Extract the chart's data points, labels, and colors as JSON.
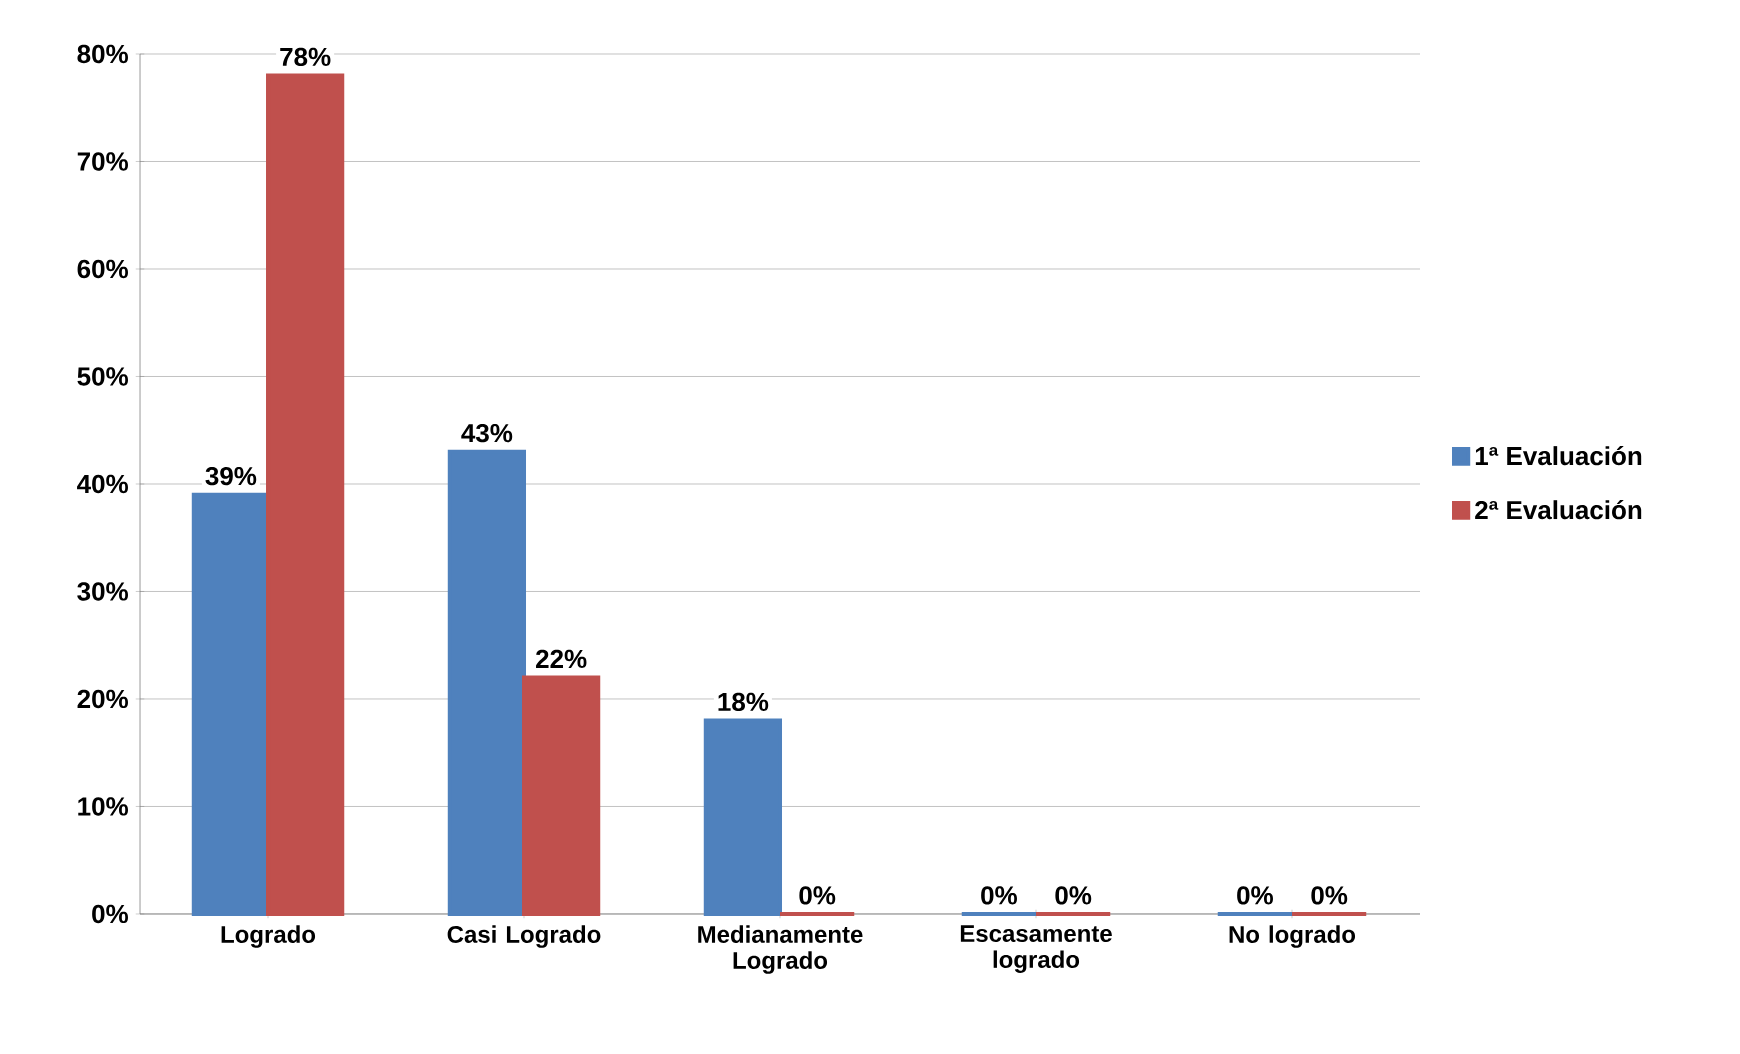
{
  "chart_data": {
    "type": "bar",
    "categories": [
      "Logrado",
      "Casi Logrado",
      "Medianamente Logrado",
      "Escasamente logrado",
      "No logrado"
    ],
    "series": [
      {
        "name": "1ª Evaluación",
        "color": "#4f81bd",
        "values": [
          39,
          43,
          18,
          0,
          0
        ],
        "value_labels": [
          "39%",
          "43%",
          "18%",
          "0%",
          "0%"
        ]
      },
      {
        "name": "2ª Evaluación",
        "color": "#c0504d",
        "values": [
          78,
          22,
          0,
          0,
          0
        ],
        "value_labels": [
          "78%",
          "22%",
          "0%",
          "0%",
          "0%"
        ]
      }
    ],
    "ylim": [
      0,
      80
    ],
    "yticks": [
      {
        "value": 0,
        "label": "0%"
      },
      {
        "value": 10,
        "label": "10%"
      },
      {
        "value": 20,
        "label": "20%"
      },
      {
        "value": 30,
        "label": "30%"
      },
      {
        "value": 40,
        "label": "40%"
      },
      {
        "value": 50,
        "label": "50%"
      },
      {
        "value": 60,
        "label": "60%"
      },
      {
        "value": 70,
        "label": "70%"
      },
      {
        "value": 80,
        "label": "80%"
      }
    ],
    "grid": "y",
    "legend": "right"
  }
}
